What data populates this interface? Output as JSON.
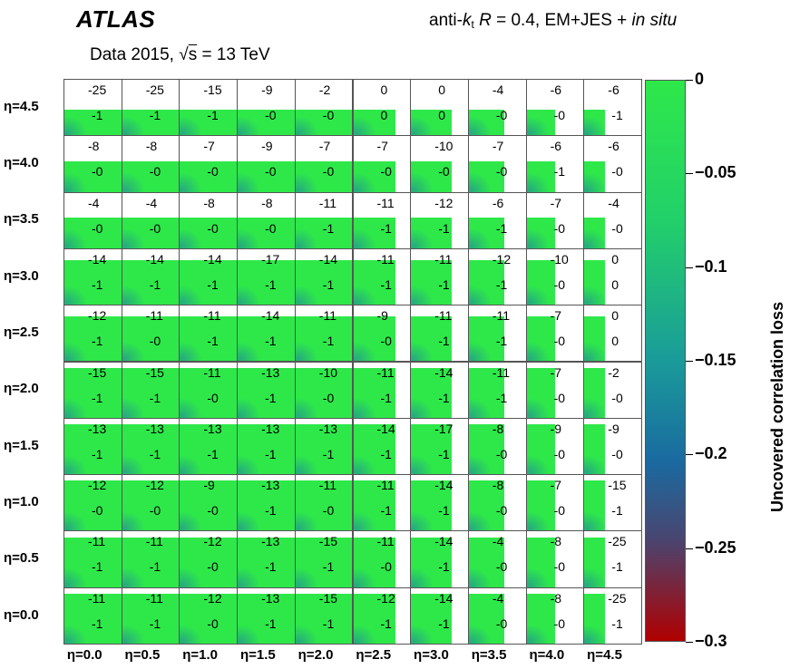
{
  "header": {
    "experiment": "ATLAS",
    "jet_prefix": "anti-",
    "jet_k": "k",
    "jet_sub": "t",
    "jet_R": "R",
    "jet_config": " = 0.4, EM+JES + ",
    "jet_insitu": "in situ",
    "data_prefix": "Data 2015, ",
    "data_s": "s",
    "data_energy": " = 13 TeV"
  },
  "chart_data": {
    "type": "heatmap",
    "title": "",
    "xlabel": "",
    "ylabel": "",
    "x_categories": [
      "η=0.0",
      "η=0.5",
      "η=1.0",
      "η=1.5",
      "η=2.0",
      "η=2.5",
      "η=3.0",
      "η=3.5",
      "η=4.0",
      "η=4.5"
    ],
    "y_categories": [
      "η=4.5",
      "η=4.0",
      "η=3.5",
      "η=3.0",
      "η=2.5",
      "η=2.0",
      "η=1.5",
      "η=1.0",
      "η=0.5",
      "η=0.0"
    ],
    "cells_top_values": [
      [
        "-25",
        "-25",
        "-15",
        "-9",
        "-2",
        "0",
        "0",
        "-4",
        "-6",
        "-6"
      ],
      [
        "-8",
        "-8",
        "-7",
        "-9",
        "-7",
        "-7",
        "-10",
        "-7",
        "-6",
        "-6"
      ],
      [
        "-4",
        "-4",
        "-8",
        "-8",
        "-11",
        "-11",
        "-12",
        "-6",
        "-7",
        "-4"
      ],
      [
        "-14",
        "-14",
        "-14",
        "-17",
        "-14",
        "-11",
        "-11",
        "-12",
        "-10",
        "0"
      ],
      [
        "-12",
        "-11",
        "-11",
        "-14",
        "-11",
        "-9",
        "-11",
        "-11",
        "-7",
        "0"
      ],
      [
        "-15",
        "-15",
        "-11",
        "-13",
        "-10",
        "-11",
        "-14",
        "-11",
        "-7",
        "-2"
      ],
      [
        "-13",
        "-13",
        "-13",
        "-13",
        "-13",
        "-14",
        "-17",
        "-8",
        "-9",
        "-9"
      ],
      [
        "-12",
        "-12",
        "-9",
        "-13",
        "-11",
        "-11",
        "-14",
        "-8",
        "-7",
        "-15"
      ],
      [
        "-11",
        "-11",
        "-12",
        "-13",
        "-15",
        "-11",
        "-14",
        "-4",
        "-8",
        "-25"
      ],
      [
        "-11",
        "-11",
        "-12",
        "-13",
        "-15",
        "-12",
        "-14",
        "-4",
        "-8",
        "-25"
      ]
    ],
    "cells_bottom_values": [
      [
        "-1",
        "-1",
        "-1",
        "-0",
        "-0",
        "0",
        "0",
        "-0",
        "-0",
        "-1"
      ],
      [
        "-0",
        "-0",
        "-0",
        "-0",
        "-0",
        "-0",
        "-0",
        "-0",
        "-1",
        "-0"
      ],
      [
        "-0",
        "-0",
        "-0",
        "-0",
        "-1",
        "-1",
        "-1",
        "-1",
        "-0",
        "-0"
      ],
      [
        "-1",
        "-1",
        "-1",
        "-1",
        "-1",
        "-1",
        "-1",
        "-1",
        "-0",
        "0"
      ],
      [
        "-1",
        "-0",
        "-1",
        "-1",
        "-1",
        "-0",
        "-1",
        "-1",
        "-0",
        "0"
      ],
      [
        "-1",
        "-1",
        "-0",
        "-1",
        "-0",
        "-1",
        "-1",
        "-1",
        "-0",
        "-0"
      ],
      [
        "-1",
        "-1",
        "-1",
        "-1",
        "-1",
        "-1",
        "-1",
        "-0",
        "-0",
        "-0"
      ],
      [
        "-0",
        "-0",
        "-0",
        "-1",
        "-0",
        "-1",
        "-1",
        "-0",
        "-0",
        "-1"
      ],
      [
        "-1",
        "-1",
        "-0",
        "-1",
        "-1",
        "-0",
        "-1",
        "-0",
        "-0",
        "-1"
      ],
      [
        "-1",
        "-1",
        "-0",
        "-1",
        "-1",
        "-1",
        "-1",
        "-0",
        "-0",
        "-1"
      ]
    ],
    "green_fill_fraction": {
      "width_by_column": [
        1,
        1,
        1,
        1,
        1,
        0.74,
        0.72,
        0.62,
        0.5,
        0.36
      ],
      "height_by_row": [
        0.46,
        0.55,
        0.55,
        0.8,
        0.8,
        0.9,
        0.9,
        0.9,
        0.9,
        0.9
      ]
    },
    "colorbar": {
      "label": "Uncovered correlation loss",
      "range": [
        -0.3,
        0
      ],
      "ticks": [
        "0",
        "−0.05",
        "−0.1",
        "−0.15",
        "−0.2",
        "−0.25",
        "−0.3"
      ],
      "tick_values": [
        0,
        -0.05,
        -0.1,
        -0.15,
        -0.2,
        -0.25,
        -0.3
      ],
      "color_top": "#2ee84a",
      "color_bottom": "#b00000"
    }
  }
}
